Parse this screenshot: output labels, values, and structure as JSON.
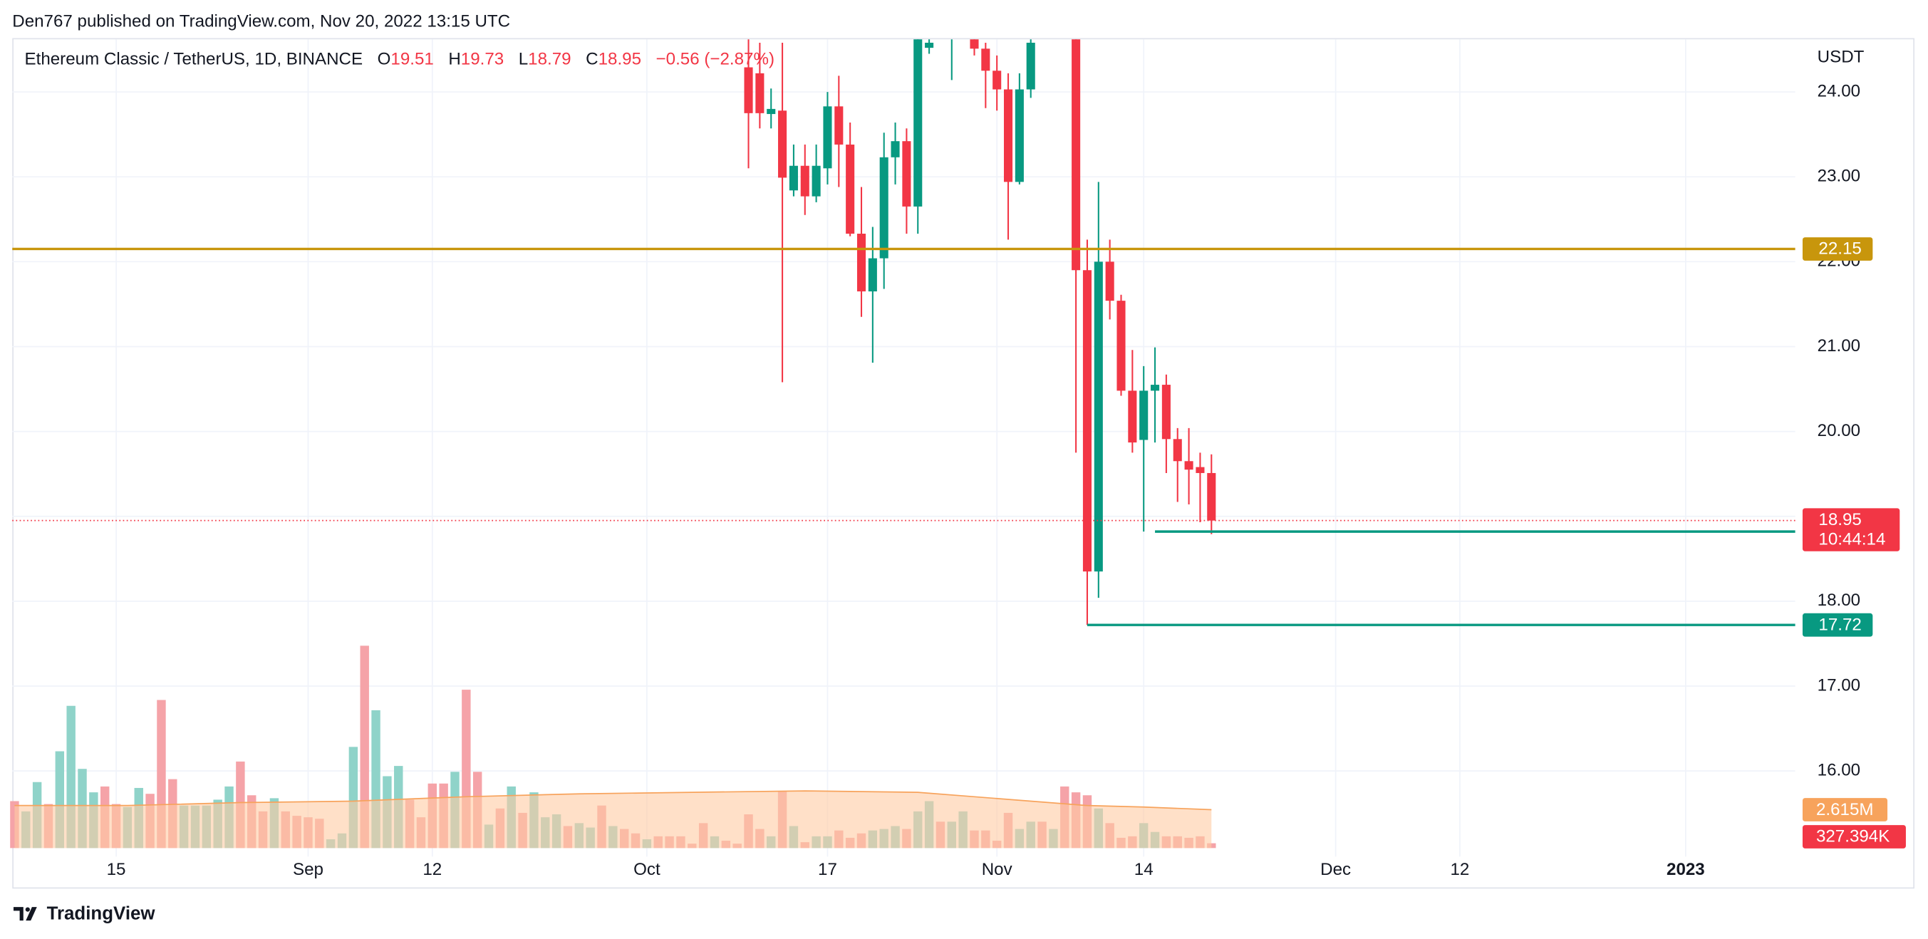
{
  "header": {
    "published": "Den767 published on TradingView.com, Nov 20, 2022 13:15 UTC",
    "brand": "TradingView"
  },
  "chart_data": {
    "type": "candlestick",
    "title": "Ethereum Classic / TetherUS, 1D, BINANCE",
    "ohlc_letters": [
      "O",
      "H",
      "L",
      "C"
    ],
    "change": "−0.56 (−2.87%)",
    "currency": "USDT",
    "up_color": "#089981",
    "down_color": "#f23645",
    "grid": true,
    "xlim": [
      -0.2,
      157.7
    ],
    "xticks": [
      {
        "value": 9,
        "label": "15"
      },
      {
        "value": 26,
        "label": "Sep"
      },
      {
        "value": 37,
        "label": "12"
      },
      {
        "value": 56,
        "label": "Oct"
      },
      {
        "value": 72,
        "label": "17"
      },
      {
        "value": 87,
        "label": "Nov"
      },
      {
        "value": 100,
        "label": "14"
      },
      {
        "value": 117,
        "label": "Dec"
      },
      {
        "value": 128,
        "label": "12"
      },
      {
        "value": 148,
        "label": "2023"
      }
    ],
    "ylim": [
      14.99,
      24.62
    ],
    "yticks": [
      {
        "value": 16,
        "label": "16.00"
      },
      {
        "value": 17,
        "label": "17.00"
      },
      {
        "value": 18,
        "label": "18.00"
      },
      {
        "value": 19,
        "label": "19.00"
      },
      {
        "value": 20,
        "label": "20.00"
      },
      {
        "value": 21,
        "label": "21.00"
      },
      {
        "value": 22,
        "label": "22.00"
      },
      {
        "value": 23,
        "label": "23.00"
      },
      {
        "value": 24,
        "label": "24.00"
      }
    ],
    "open": [
      null,
      null,
      null,
      null,
      null,
      null,
      null,
      null,
      null,
      null,
      null,
      null,
      null,
      null,
      null,
      null,
      null,
      null,
      null,
      null,
      null,
      null,
      null,
      null,
      null,
      null,
      null,
      null,
      null,
      null,
      null,
      null,
      null,
      null,
      null,
      null,
      null,
      null,
      null,
      null,
      null,
      null,
      null,
      null,
      null,
      null,
      null,
      null,
      null,
      null,
      null,
      null,
      null,
      null,
      null,
      null,
      null,
      null,
      null,
      null,
      null,
      null,
      null,
      null,
      null,
      24.29,
      24.22,
      23.74,
      23.78,
      22.84,
      23.13,
      22.77,
      23.1,
      23.83,
      23.38,
      22.33,
      21.65,
      22.04,
      23.23,
      23.42,
      22.65,
      24.52,
      null,
      25.0,
      null,
      24.7,
      24.51,
      24.25,
      24.03,
      22.94,
      24.03,
      null,
      null,
      null,
      25.1,
      21.9,
      18.35,
      22.0,
      21.54,
      20.48,
      19.9,
      20.48,
      20.55,
      19.91,
      19.65,
      19.58,
      19.51
    ],
    "high": [
      null,
      null,
      null,
      null,
      null,
      null,
      null,
      null,
      null,
      null,
      null,
      null,
      null,
      null,
      null,
      null,
      null,
      null,
      null,
      null,
      null,
      null,
      null,
      null,
      null,
      null,
      null,
      null,
      null,
      null,
      null,
      null,
      null,
      null,
      null,
      null,
      null,
      null,
      null,
      null,
      null,
      null,
      null,
      null,
      null,
      null,
      null,
      null,
      null,
      null,
      null,
      null,
      null,
      null,
      null,
      null,
      null,
      null,
      null,
      null,
      null,
      null,
      null,
      null,
      null,
      24.65,
      24.58,
      24.04,
      24.58,
      23.38,
      23.38,
      23.38,
      24.0,
      24.19,
      23.64,
      22.88,
      22.41,
      23.52,
      23.64,
      23.57,
      25.0,
      24.7,
      null,
      25.5,
      null,
      24.9,
      24.58,
      24.43,
      24.22,
      24.22,
      24.9,
      null,
      null,
      null,
      25.3,
      22.26,
      22.94,
      22.26,
      21.61,
      20.96,
      20.77,
      20.99,
      20.67,
      20.04,
      20.04,
      19.75,
      19.73
    ],
    "low": [
      null,
      null,
      null,
      null,
      null,
      null,
      null,
      null,
      null,
      null,
      null,
      null,
      null,
      null,
      null,
      null,
      null,
      null,
      null,
      null,
      null,
      null,
      null,
      null,
      null,
      null,
      null,
      null,
      null,
      null,
      null,
      null,
      null,
      null,
      null,
      null,
      null,
      null,
      null,
      null,
      null,
      null,
      null,
      null,
      null,
      null,
      null,
      null,
      null,
      null,
      null,
      null,
      null,
      null,
      null,
      null,
      null,
      null,
      null,
      null,
      null,
      null,
      null,
      null,
      null,
      23.1,
      23.57,
      23.57,
      20.58,
      22.77,
      22.55,
      22.7,
      22.91,
      22.88,
      22.3,
      21.35,
      20.81,
      21.68,
      22.91,
      22.33,
      22.33,
      24.45,
      null,
      24.14,
      null,
      24.43,
      23.81,
      23.78,
      22.26,
      22.91,
      23.93,
      null,
      null,
      null,
      19.75,
      17.72,
      18.04,
      21.32,
      20.42,
      19.75,
      18.82,
      19.87,
      19.51,
      19.17,
      19.14,
      18.93,
      18.79
    ],
    "close": [
      null,
      null,
      null,
      null,
      null,
      null,
      null,
      null,
      null,
      null,
      null,
      null,
      null,
      null,
      null,
      null,
      null,
      null,
      null,
      null,
      null,
      null,
      null,
      null,
      null,
      null,
      null,
      null,
      null,
      null,
      null,
      null,
      null,
      null,
      null,
      null,
      null,
      null,
      null,
      null,
      null,
      null,
      null,
      null,
      null,
      null,
      null,
      null,
      null,
      null,
      null,
      null,
      null,
      null,
      null,
      null,
      null,
      null,
      null,
      null,
      null,
      null,
      null,
      null,
      null,
      23.75,
      23.75,
      23.8,
      22.99,
      23.13,
      22.77,
      23.13,
      23.83,
      23.38,
      22.33,
      21.65,
      22.04,
      23.23,
      23.42,
      22.65,
      24.65,
      24.58,
      null,
      25.3,
      null,
      24.51,
      24.25,
      24.03,
      22.94,
      24.03,
      24.58,
      null,
      null,
      null,
      21.9,
      18.35,
      22.0,
      21.54,
      20.48,
      19.87,
      20.48,
      20.55,
      19.91,
      19.65,
      19.55,
      19.51,
      18.95
    ],
    "countdown": "10:44:14",
    "last_color": "#f23645",
    "levels": [
      {
        "value": 22.15,
        "color": "#c8960c"
      },
      {
        "value": 18.82,
        "color": "#089981",
        "start": 101
      },
      {
        "value": 17.72,
        "color": "#089981",
        "start": 95
      }
    ],
    "volume": {
      "ylim": [
        0,
        14000000
      ],
      "up_color": "#8fd3c9",
      "down_color": "#f5a3a8",
      "values": [
        3200000,
        2500000,
        4500000,
        3000000,
        6600000,
        9700000,
        5400000,
        3800000,
        4200000,
        3000000,
        2800000,
        4100000,
        3700000,
        10100000,
        4700000,
        2900000,
        2900000,
        2900000,
        3300000,
        4200000,
        5900000,
        3600000,
        2500000,
        3400000,
        2500000,
        2200000,
        2100000,
        2000000,
        600000,
        1000000,
        6900000,
        13800000,
        9400000,
        4900000,
        5600000,
        3300000,
        2100000,
        4400000,
        4400000,
        5200000,
        10800000,
        5200000,
        1600000,
        2700000,
        4200000,
        2400000,
        3800000,
        2100000,
        2300000,
        1500000,
        1700000,
        1400000,
        2900000,
        1500000,
        1300000,
        1000000,
        600000,
        800000,
        800000,
        800000,
        300000,
        1700000,
        800000,
        500000,
        300000,
        2300000,
        1300000,
        800000,
        3900000,
        1500000,
        400000,
        800000,
        800000,
        1200000,
        700000,
        1000000,
        1200000,
        1300000,
        1500000,
        1300000,
        2500000,
        3200000,
        1800000,
        1800000,
        2500000,
        1200000,
        1200000,
        500000,
        2400000,
        1300000,
        1800000,
        1800000,
        1300000,
        4200000,
        3800000,
        3600000,
        2700000,
        1700000,
        700000,
        800000,
        1700000,
        1100000,
        800000,
        800000,
        700000,
        800000,
        327394
      ],
      "direction": [
        "down",
        "up",
        "up",
        "down",
        "up",
        "up",
        "up",
        "up",
        "down",
        "down",
        "up",
        "up",
        "down",
        "down",
        "down",
        "up",
        "up",
        "up",
        "up",
        "up",
        "down",
        "down",
        "down",
        "up",
        "down",
        "down",
        "down",
        "down",
        "up",
        "up",
        "up",
        "down",
        "up",
        "up",
        "up",
        "down",
        "down",
        "down",
        "down",
        "up",
        "down",
        "down",
        "up",
        "down",
        "up",
        "down",
        "up",
        "up",
        "up",
        "down",
        "up",
        "up",
        "down",
        "up",
        "down",
        "down",
        "up",
        "down",
        "down",
        "down",
        "down",
        "down",
        "up",
        "down",
        "down",
        "down",
        "down",
        "up",
        "down",
        "up",
        "down",
        "up",
        "up",
        "down",
        "down",
        "down",
        "up",
        "up",
        "up",
        "down",
        "up",
        "up",
        "down",
        "up",
        "up",
        "down",
        "down",
        "down",
        "down",
        "up",
        "up",
        "down",
        "up",
        "down",
        "down",
        "down",
        "up",
        "down",
        "down",
        "down",
        "up",
        "up",
        "down",
        "down",
        "down",
        "down",
        "down"
      ],
      "last_label": "327.394K",
      "ma": {
        "color": "#f7a35c",
        "fill": "#ffcba4",
        "x": [
          0,
          10,
          20,
          30,
          40,
          50,
          60,
          70,
          80,
          85,
          90,
          95,
          100,
          106
        ],
        "values": [
          2900000,
          2900000,
          3100000,
          3200000,
          3500000,
          3700000,
          3800000,
          3900000,
          3800000,
          3500000,
          3200000,
          2900000,
          2800000,
          2615000
        ],
        "last_label": "2.615M"
      }
    }
  }
}
